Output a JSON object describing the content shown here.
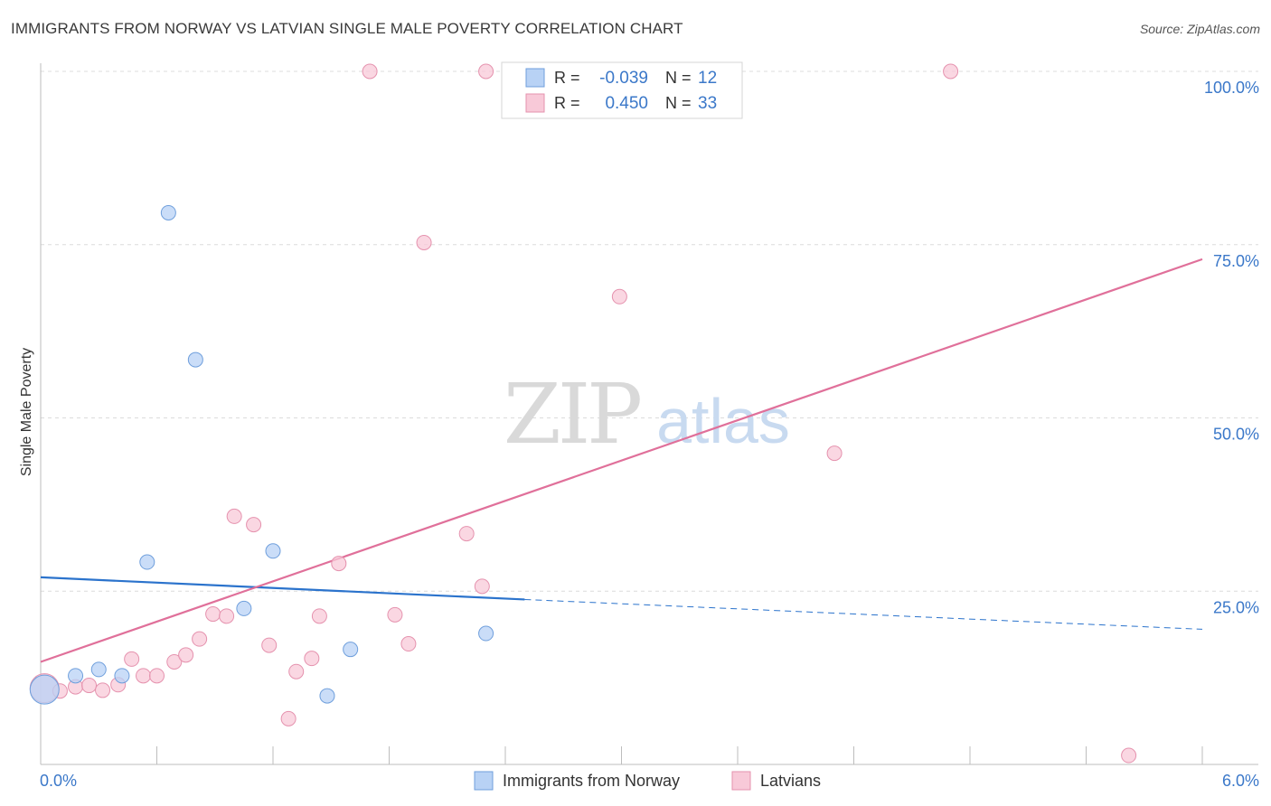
{
  "header": {
    "title": "IMMIGRANTS FROM NORWAY VS LATVIAN SINGLE MALE POVERTY CORRELATION CHART",
    "source": "Source: ZipAtlas.com"
  },
  "watermark": {
    "zip": "ZIP",
    "atlas": "atlas"
  },
  "legend_stats": [
    {
      "r_label": "R =",
      "r_value": "-0.039",
      "n_label": "N =",
      "n_value": "12"
    },
    {
      "r_label": "R =",
      "r_value": "0.450",
      "n_label": "N =",
      "n_value": "33"
    }
  ],
  "colors": {
    "norway_fill": "#b8d2f5",
    "norway_stroke": "#6f9fdc",
    "norway_line": "#2b73cc",
    "latvia_fill": "#f8c9d8",
    "latvia_stroke": "#e592ae",
    "latvia_line": "#e0709a",
    "value_blue": "#3b78c9",
    "grid": "#dcdcdc"
  },
  "chart_data": {
    "type": "scatter",
    "title": "IMMIGRANTS FROM NORWAY VS LATVIAN SINGLE MALE POVERTY CORRELATION CHART",
    "xlabel": "",
    "ylabel": "Single Male Poverty",
    "xlim": [
      0,
      6
    ],
    "ylim": [
      0,
      105
    ],
    "x_tick_labels": [
      {
        "x": 0,
        "label": "0.0%"
      },
      {
        "x": 6,
        "label": "6.0%"
      }
    ],
    "y_tick_labels": [
      {
        "y": 25,
        "label": "25.0%"
      },
      {
        "y": 50,
        "label": "50.0%"
      },
      {
        "y": 75,
        "label": "75.0%"
      },
      {
        "y": 100,
        "label": "100.0%"
      }
    ],
    "gridlines_y": [
      25,
      50,
      75,
      100
    ],
    "series": [
      {
        "name": "Immigrants from Norway",
        "r": -0.039,
        "n": 12,
        "points": [
          {
            "x": 0.02,
            "y": 10.8,
            "size": "large"
          },
          {
            "x": 0.18,
            "y": 12.8
          },
          {
            "x": 0.3,
            "y": 13.7
          },
          {
            "x": 0.42,
            "y": 12.8
          },
          {
            "x": 0.55,
            "y": 29.2
          },
          {
            "x": 0.66,
            "y": 79.6
          },
          {
            "x": 0.8,
            "y": 58.4
          },
          {
            "x": 1.05,
            "y": 22.5
          },
          {
            "x": 1.2,
            "y": 30.8
          },
          {
            "x": 1.48,
            "y": 9.9
          },
          {
            "x": 1.6,
            "y": 16.6
          },
          {
            "x": 2.3,
            "y": 18.9
          }
        ],
        "trend": {
          "x_start": 0,
          "y_start": 27.0,
          "x_solid_end": 2.5,
          "y_solid_end": 23.8,
          "x_end": 6.0,
          "y_end": 19.5
        }
      },
      {
        "name": "Latvians",
        "r": 0.45,
        "n": 33,
        "points": [
          {
            "x": 0.02,
            "y": 11.0,
            "size": "large"
          },
          {
            "x": 0.1,
            "y": 10.6
          },
          {
            "x": 0.18,
            "y": 11.2
          },
          {
            "x": 0.25,
            "y": 11.4
          },
          {
            "x": 0.32,
            "y": 10.7
          },
          {
            "x": 0.4,
            "y": 11.5
          },
          {
            "x": 0.47,
            "y": 15.2
          },
          {
            "x": 0.53,
            "y": 12.8
          },
          {
            "x": 0.6,
            "y": 12.8
          },
          {
            "x": 0.69,
            "y": 14.8
          },
          {
            "x": 0.75,
            "y": 15.8
          },
          {
            "x": 0.82,
            "y": 18.1
          },
          {
            "x": 0.89,
            "y": 21.7
          },
          {
            "x": 0.96,
            "y": 21.4
          },
          {
            "x": 1.0,
            "y": 35.8
          },
          {
            "x": 1.1,
            "y": 34.6
          },
          {
            "x": 1.18,
            "y": 17.2
          },
          {
            "x": 1.28,
            "y": 6.6
          },
          {
            "x": 1.32,
            "y": 13.4
          },
          {
            "x": 1.4,
            "y": 15.3
          },
          {
            "x": 1.44,
            "y": 21.4
          },
          {
            "x": 1.54,
            "y": 29.0
          },
          {
            "x": 1.7,
            "y": 100.0
          },
          {
            "x": 1.83,
            "y": 21.6
          },
          {
            "x": 1.9,
            "y": 17.4
          },
          {
            "x": 1.98,
            "y": 75.3
          },
          {
            "x": 2.2,
            "y": 33.3
          },
          {
            "x": 2.28,
            "y": 25.7
          },
          {
            "x": 2.3,
            "y": 100.0
          },
          {
            "x": 2.99,
            "y": 67.5
          },
          {
            "x": 4.1,
            "y": 44.9
          },
          {
            "x": 4.7,
            "y": 100.0
          },
          {
            "x": 5.62,
            "y": 1.3
          }
        ],
        "trend": {
          "x_start": 0,
          "y_start": 14.8,
          "x_end": 6.0,
          "y_end": 72.9
        }
      }
    ],
    "legend": [
      {
        "label": "Immigrants from Norway"
      },
      {
        "label": "Latvians"
      }
    ]
  }
}
